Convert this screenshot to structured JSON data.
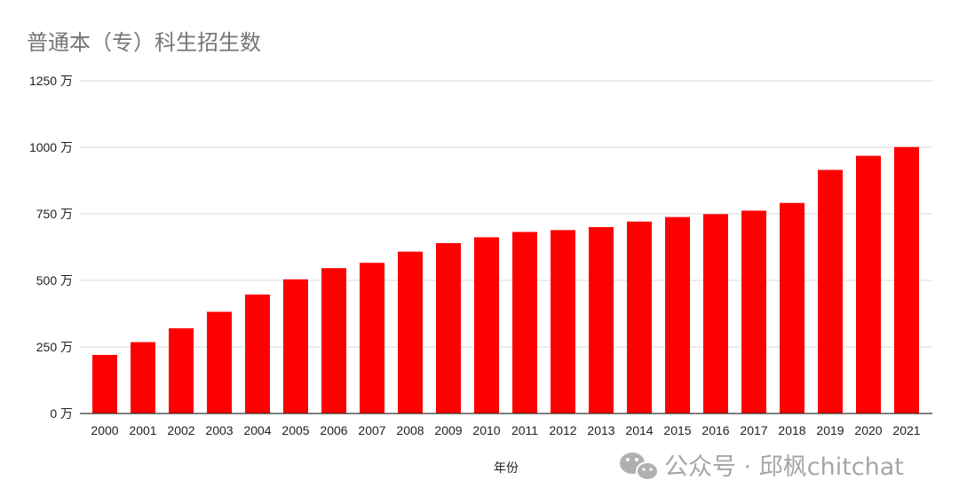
{
  "chart_data": {
    "type": "bar",
    "title": "普通本（专）科生招生数",
    "xlabel": "年份",
    "ylabel": "",
    "y_unit": "万",
    "ylim": [
      0,
      1250
    ],
    "yticks": [
      0,
      250,
      500,
      750,
      1000,
      1250
    ],
    "ytick_labels": [
      "0 万",
      "250 万",
      "500 万",
      "750 万",
      "1000 万",
      "1250 万"
    ],
    "grid": true,
    "legend": "none",
    "bar_color": "#ff0000",
    "categories": [
      "2000",
      "2001",
      "2002",
      "2003",
      "2004",
      "2005",
      "2006",
      "2007",
      "2008",
      "2009",
      "2010",
      "2011",
      "2012",
      "2013",
      "2014",
      "2015",
      "2016",
      "2017",
      "2018",
      "2019",
      "2020",
      "2021"
    ],
    "values": [
      220,
      268,
      320,
      382,
      447,
      504,
      546,
      566,
      608,
      640,
      662,
      682,
      689,
      700,
      721,
      738,
      749,
      762,
      791,
      915,
      968,
      1001
    ]
  },
  "watermark": {
    "icon": "wechat-icon",
    "text": "公众号 · 邱枫chitchat"
  }
}
